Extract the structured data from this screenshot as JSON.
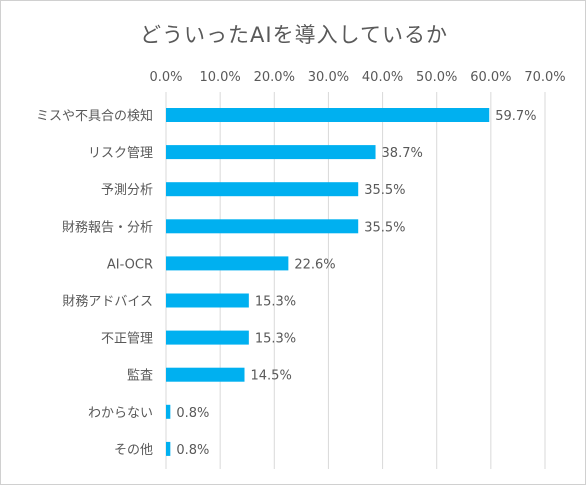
{
  "chart_data": {
    "type": "bar",
    "orientation": "horizontal",
    "title": "どういったAIを導入しているか",
    "categories": [
      "ミスや不具合の検知",
      "リスク管理",
      "予測分析",
      "財務報告・分析",
      "AI-OCR",
      "財務アドバイス",
      "不正管理",
      "監査",
      "わからない",
      "その他"
    ],
    "values": [
      59.7,
      38.7,
      35.5,
      35.5,
      22.6,
      15.3,
      15.3,
      14.5,
      0.8,
      0.8
    ],
    "data_labels": [
      "59.7%",
      "38.7%",
      "35.5%",
      "35.5%",
      "22.6%",
      "15.3%",
      "15.3%",
      "14.5%",
      "0.8%",
      "0.8%"
    ],
    "xlim": [
      0,
      70
    ],
    "x_ticks": [
      0,
      10,
      20,
      30,
      40,
      50,
      60,
      70
    ],
    "x_tick_labels": [
      "0.0%",
      "10.0%",
      "20.0%",
      "30.0%",
      "40.0%",
      "50.0%",
      "60.0%",
      "70.0%"
    ],
    "x_axis_position": "top",
    "grid": true,
    "legend": "none",
    "colors": {
      "bar": "#00B0F0",
      "grid": "#d9d9d9",
      "text": "#595959"
    }
  }
}
